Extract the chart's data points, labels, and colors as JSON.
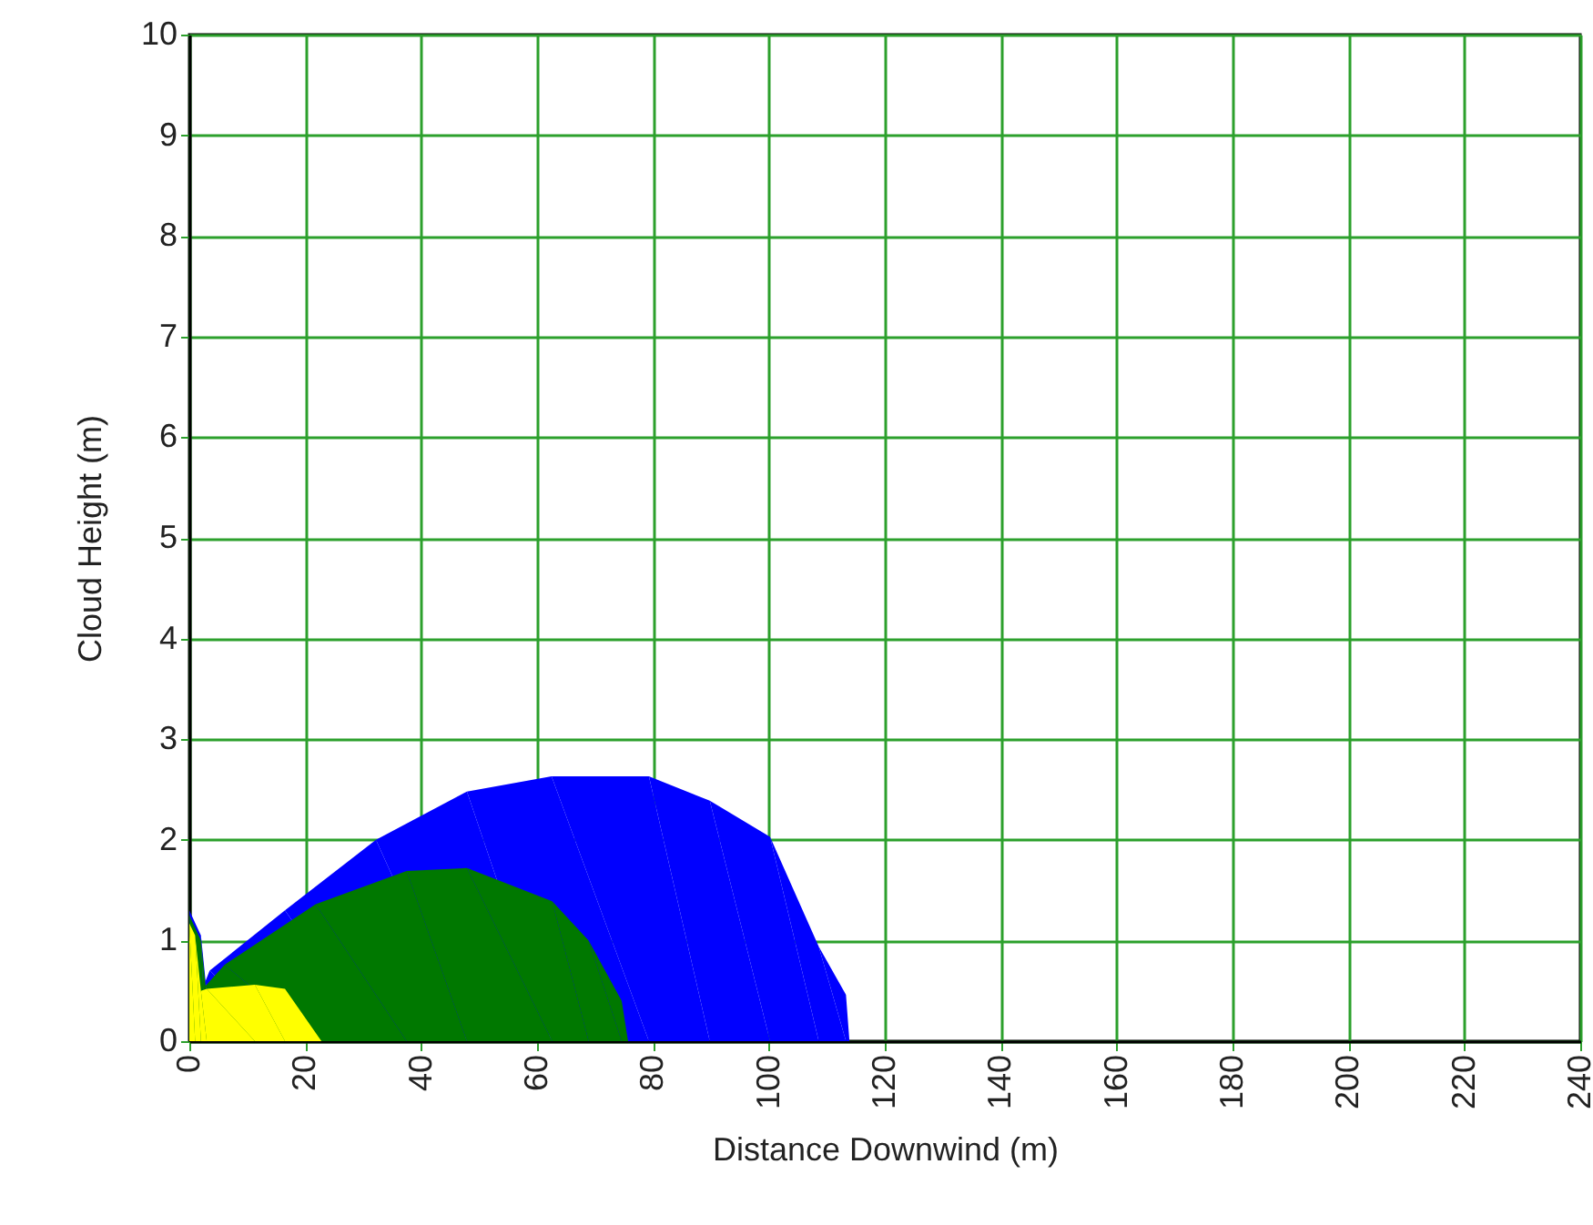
{
  "chart_data": {
    "type": "area",
    "xlabel": "Distance Downwind (m)",
    "ylabel": "Cloud Height (m)",
    "xlim": [
      0,
      240
    ],
    "ylim": [
      0,
      10
    ],
    "xticks": [
      0,
      20,
      40,
      60,
      80,
      100,
      120,
      140,
      160,
      180,
      200,
      220,
      240
    ],
    "yticks": [
      0,
      1,
      2,
      3,
      4,
      5,
      6,
      7,
      8,
      9,
      10
    ],
    "grid": true,
    "series": [
      {
        "color": "#0000ff",
        "x": [
          0,
          2,
          2.8,
          3.5,
          16.5,
          32.2,
          47.9,
          62.5,
          79.3,
          89.8,
          100.2,
          108.6,
          113.3,
          113.9
        ],
        "values": [
          1.3,
          1.05,
          0.6,
          0.7,
          1.3,
          2.0,
          2.48,
          2.63,
          2.63,
          2.39,
          2.03,
          0.94,
          0.46,
          0
        ]
      },
      {
        "color": "#007800",
        "x": [
          0,
          2,
          2.8,
          6.1,
          21.8,
          37.5,
          47.9,
          62.6,
          68.9,
          74.6,
          75.7
        ],
        "values": [
          1.25,
          1.0,
          0.55,
          0.76,
          1.36,
          1.69,
          1.72,
          1.39,
          1.0,
          0.4,
          0
        ]
      },
      {
        "color": "#ffff00",
        "x": [
          0,
          1,
          2,
          3,
          11.3,
          16.5,
          22.8
        ],
        "values": [
          1.17,
          1.05,
          0.5,
          0.52,
          0.56,
          0.52,
          0
        ]
      }
    ]
  }
}
